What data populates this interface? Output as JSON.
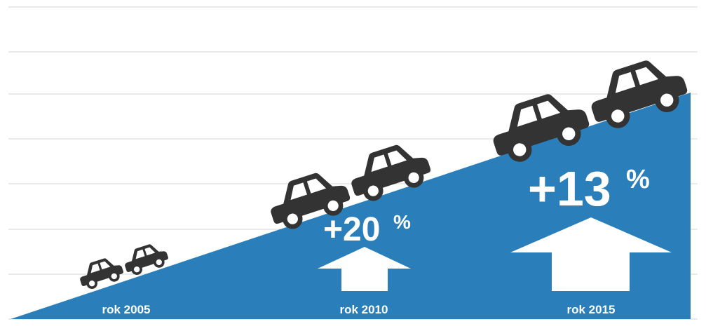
{
  "labels": [
    "rok 2005",
    "rok 2010",
    "rok 2015"
  ],
  "changes": [
    {
      "value": "+20",
      "unit": "%"
    },
    {
      "value": "+13",
      "unit": "%"
    }
  ]
}
